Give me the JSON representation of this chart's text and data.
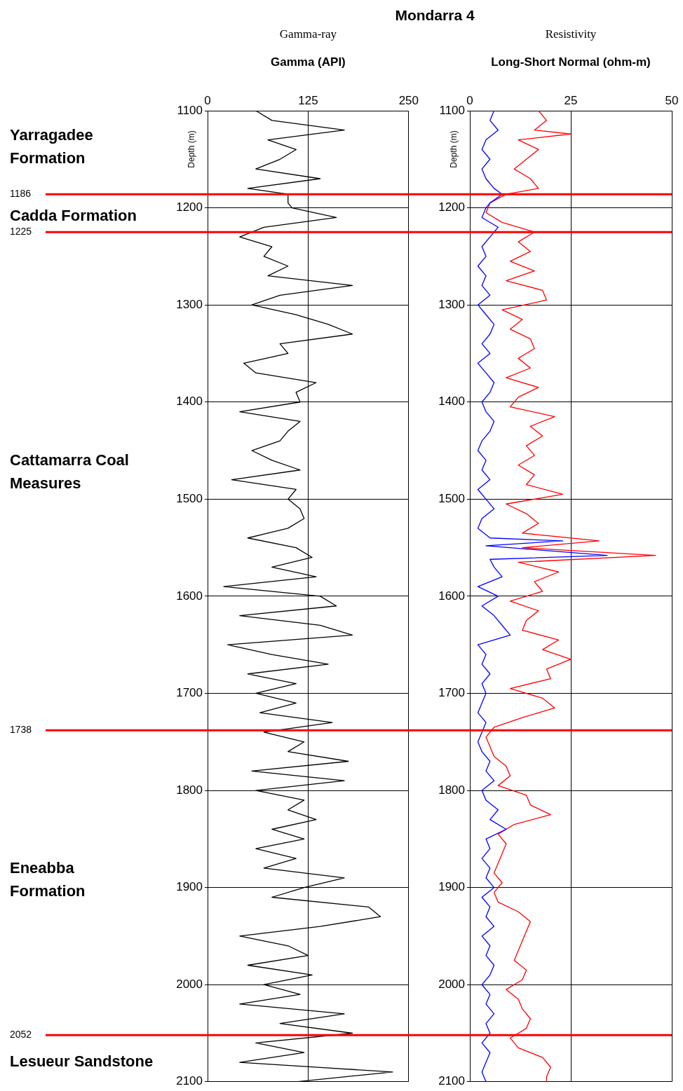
{
  "chart_data": [
    {
      "type": "line",
      "title": "Mondarra 4",
      "subtitle": "Gamma-ray",
      "xlabel": "Gamma (API)",
      "ylabel": "Depth (m)",
      "xlim": [
        0,
        250
      ],
      "xticks": [
        0,
        125,
        250
      ],
      "ylim": [
        2100,
        1100
      ],
      "yticks": [
        1100,
        1200,
        1300,
        1400,
        1500,
        1600,
        1700,
        1800,
        1900,
        2000,
        2100
      ],
      "grid": true,
      "series": [
        {
          "color": "#000000",
          "x": [
            60,
            80,
            170,
            75,
            110,
            90,
            60,
            140,
            50,
            100,
            100,
            105,
            160,
            70,
            40,
            80,
            70,
            100,
            75,
            180,
            90,
            55,
            110,
            150,
            180,
            90,
            100,
            45,
            60,
            135,
            110,
            115,
            40,
            115,
            100,
            90,
            55,
            80,
            115,
            30,
            110,
            100,
            115,
            120,
            100,
            50,
            110,
            130,
            80,
            135,
            20,
            140,
            160,
            40,
            140,
            180,
            25,
            80,
            150,
            50,
            110,
            60,
            110,
            65,
            155,
            70,
            120,
            100,
            175,
            55,
            170,
            60,
            120,
            100,
            135,
            80,
            120,
            60,
            110,
            70,
            170,
            120,
            80,
            200,
            215,
            140,
            40,
            100,
            125,
            50,
            130,
            70,
            115,
            40,
            170,
            90,
            180,
            60,
            120,
            40,
            230,
            110
          ],
          "values": [
            1100,
            1110,
            1120,
            1130,
            1140,
            1150,
            1160,
            1170,
            1180,
            1186,
            1195,
            1200,
            1210,
            1220,
            1230,
            1240,
            1250,
            1260,
            1270,
            1280,
            1290,
            1300,
            1310,
            1320,
            1330,
            1340,
            1350,
            1360,
            1370,
            1380,
            1390,
            1400,
            1410,
            1420,
            1430,
            1440,
            1450,
            1460,
            1470,
            1480,
            1490,
            1500,
            1510,
            1520,
            1530,
            1540,
            1550,
            1560,
            1570,
            1580,
            1590,
            1600,
            1610,
            1620,
            1630,
            1640,
            1650,
            1660,
            1670,
            1680,
            1690,
            1700,
            1710,
            1720,
            1730,
            1740,
            1750,
            1760,
            1770,
            1780,
            1790,
            1800,
            1810,
            1820,
            1830,
            1840,
            1850,
            1860,
            1870,
            1880,
            1890,
            1900,
            1910,
            1920,
            1930,
            1940,
            1950,
            1960,
            1970,
            1980,
            1990,
            2000,
            2010,
            2020,
            2030,
            2040,
            2050,
            2060,
            2070,
            2080,
            2090,
            2100
          ]
        }
      ],
      "ref_lines": [
        {
          "axis": "y",
          "value": 1186,
          "label": "1186",
          "color": "#ff0000"
        },
        {
          "axis": "y",
          "value": 1225,
          "label": "1225",
          "color": "#ff0000"
        },
        {
          "axis": "y",
          "value": 1738,
          "label": "1738",
          "color": "#ff0000"
        },
        {
          "axis": "y",
          "value": 2052,
          "label": "2052",
          "color": "#ff0000"
        }
      ],
      "annotations": [
        "Yarragadee Formation",
        "Cadda Formation",
        "Cattamarra Coal Measures",
        "Eneabba Formation",
        "Lesueur Sandstone"
      ]
    },
    {
      "type": "line",
      "subtitle": "Resistivity",
      "xlabel": "Long-Short Normal (ohm-m)",
      "ylabel": "Depth (m)",
      "xlim": [
        0,
        50
      ],
      "xticks": [
        0,
        25,
        50
      ],
      "ylim": [
        2100,
        1100
      ],
      "yticks": [
        1100,
        1200,
        1300,
        1400,
        1500,
        1600,
        1700,
        1800,
        1900,
        2000,
        2100
      ],
      "grid": true,
      "series": [
        {
          "color": "#0000ff",
          "x": [
            6,
            5,
            7,
            4,
            3,
            5,
            3,
            4,
            6,
            8,
            5,
            4,
            3,
            7,
            5,
            3,
            4,
            2,
            4,
            3,
            5,
            2,
            4,
            6,
            5,
            3,
            5,
            2,
            4,
            6,
            5,
            3,
            4,
            6,
            5,
            3,
            2,
            4,
            3,
            5,
            2,
            4,
            6,
            3,
            2,
            5,
            23,
            4,
            34,
            5,
            6,
            8,
            2,
            7,
            3,
            6,
            8,
            10,
            2,
            4,
            3,
            5,
            3,
            4,
            3,
            2,
            4,
            3,
            2,
            3,
            5,
            4,
            6,
            3,
            4,
            7,
            5,
            9,
            4,
            5,
            3,
            5,
            4,
            6,
            3,
            5,
            4,
            6,
            3,
            5,
            4,
            6,
            5,
            3,
            5,
            4,
            6,
            4,
            5,
            3,
            5,
            4,
            3,
            4
          ],
          "values": [
            1100,
            1110,
            1120,
            1130,
            1140,
            1150,
            1160,
            1170,
            1180,
            1186,
            1195,
            1200,
            1210,
            1220,
            1230,
            1240,
            1250,
            1260,
            1270,
            1280,
            1290,
            1300,
            1310,
            1320,
            1330,
            1340,
            1350,
            1360,
            1370,
            1380,
            1390,
            1400,
            1410,
            1420,
            1430,
            1440,
            1450,
            1460,
            1470,
            1480,
            1490,
            1500,
            1510,
            1520,
            1530,
            1540,
            1543,
            1548,
            1558,
            1562,
            1570,
            1580,
            1590,
            1600,
            1610,
            1620,
            1630,
            1640,
            1650,
            1660,
            1670,
            1680,
            1690,
            1700,
            1710,
            1720,
            1730,
            1740,
            1750,
            1760,
            1770,
            1780,
            1790,
            1800,
            1810,
            1820,
            1830,
            1840,
            1850,
            1860,
            1870,
            1880,
            1890,
            1900,
            1910,
            1920,
            1930,
            1940,
            1950,
            1960,
            1970,
            1980,
            1990,
            2000,
            2010,
            2020,
            2030,
            2040,
            2050,
            2060,
            2070,
            2080,
            2090,
            2100
          ]
        },
        {
          "color": "#ff0000",
          "x": [
            17,
            19,
            16,
            25,
            12,
            17,
            14,
            11,
            15,
            17,
            9,
            5,
            4,
            8,
            16,
            12,
            15,
            10,
            16,
            9,
            18,
            19,
            8,
            13,
            10,
            15,
            16,
            12,
            15,
            9,
            17,
            12,
            10,
            21,
            15,
            18,
            14,
            16,
            12,
            16,
            14,
            23,
            9,
            14,
            17,
            13,
            32,
            13,
            46,
            12,
            22,
            16,
            18,
            10,
            17,
            14,
            13,
            22,
            18,
            25,
            19,
            20,
            10,
            18,
            21,
            13,
            6,
            4,
            5,
            6,
            9,
            10,
            7,
            14,
            15,
            20,
            11,
            7,
            9,
            8,
            7,
            6,
            8,
            6,
            7,
            12,
            15,
            14,
            13,
            12,
            11,
            14,
            13,
            9,
            12,
            13,
            15,
            14,
            10,
            12,
            18,
            20,
            19,
            19
          ],
          "values": [
            1100,
            1110,
            1120,
            1124,
            1130,
            1140,
            1150,
            1160,
            1170,
            1180,
            1186,
            1195,
            1205,
            1215,
            1225,
            1235,
            1245,
            1255,
            1265,
            1275,
            1285,
            1295,
            1305,
            1315,
            1325,
            1335,
            1345,
            1355,
            1365,
            1375,
            1385,
            1395,
            1405,
            1415,
            1425,
            1435,
            1445,
            1455,
            1465,
            1475,
            1485,
            1495,
            1505,
            1515,
            1525,
            1535,
            1543,
            1550,
            1558,
            1565,
            1575,
            1585,
            1595,
            1605,
            1615,
            1625,
            1635,
            1645,
            1655,
            1665,
            1675,
            1685,
            1695,
            1705,
            1715,
            1725,
            1735,
            1745,
            1755,
            1765,
            1775,
            1785,
            1795,
            1805,
            1815,
            1825,
            1835,
            1845,
            1855,
            1865,
            1875,
            1885,
            1895,
            1905,
            1915,
            1925,
            1935,
            1945,
            1955,
            1965,
            1975,
            1985,
            1995,
            2005,
            2015,
            2025,
            2035,
            2045,
            2055,
            2065,
            2075,
            2085,
            2095,
            2100
          ]
        }
      ],
      "ref_lines": [
        {
          "axis": "y",
          "value": 1186,
          "label": null,
          "color": "#ff0000"
        },
        {
          "axis": "y",
          "value": 1225,
          "label": null,
          "color": "#ff0000"
        },
        {
          "axis": "y",
          "value": 1738,
          "label": null,
          "color": "#ff0000"
        },
        {
          "axis": "y",
          "value": 2052,
          "label": null,
          "color": "#ff0000"
        }
      ]
    }
  ]
}
